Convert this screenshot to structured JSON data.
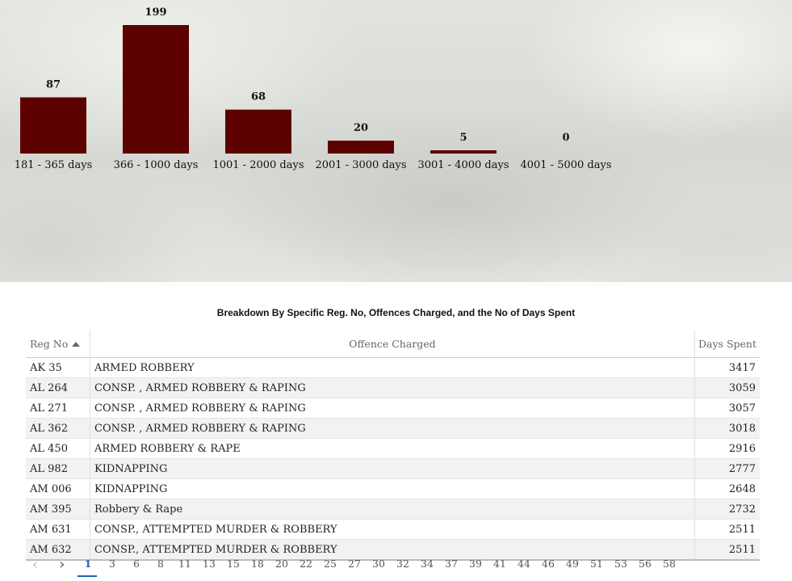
{
  "chart_data": {
    "type": "bar",
    "categories": [
      "181 - 365 days",
      "366 - 1000 days",
      "1001 - 2000 days",
      "2001 - 3000 days",
      "3001 - 4000 days",
      "4001 - 5000 days"
    ],
    "values": [
      87,
      199,
      68,
      20,
      5,
      0
    ],
    "title": "",
    "xlabel": "",
    "ylabel": "",
    "ylim": [
      0,
      199
    ],
    "data_labels": true,
    "grid": false,
    "bar_color": "#5c0000"
  },
  "table": {
    "title": "Breakdown By Specific Reg. No, Offences Charged, and the No of Days Spent",
    "columns": [
      "Reg No",
      "Offence Charged",
      "Days Spent"
    ],
    "sort": {
      "column": "Reg No",
      "direction": "ascending"
    },
    "rows": [
      {
        "reg": "AK 35",
        "offence": "ARMED ROBBERY",
        "days": "3417"
      },
      {
        "reg": "AL 264",
        "offence": "CONSP. , ARMED ROBBERY & RAPING",
        "days": "3059"
      },
      {
        "reg": "AL 271",
        "offence": "CONSP. , ARMED ROBBERY & RAPING",
        "days": "3057"
      },
      {
        "reg": "AL 362",
        "offence": "CONSP. , ARMED ROBBERY & RAPING",
        "days": "3018"
      },
      {
        "reg": "AL 450",
        "offence": "ARMED ROBBERY & RAPE",
        "days": "2916"
      },
      {
        "reg": "AL 982",
        "offence": "KIDNAPPING",
        "days": "2777"
      },
      {
        "reg": "AM 006",
        "offence": "KIDNAPPING",
        "days": "2648"
      },
      {
        "reg": "AM 395",
        "offence": "Robbery & Rape",
        "days": "2732"
      },
      {
        "reg": "AM 631",
        "offence": "CONSP., ATTEMPTED MURDER & ROBBERY",
        "days": "2511"
      },
      {
        "reg": "AM 632",
        "offence": "CONSP., ATTEMPTED MURDER & ROBBERY",
        "days": "2511"
      }
    ]
  },
  "pagination": {
    "prev_icon": "‹",
    "next_icon": "›",
    "pages": [
      "1",
      "3",
      "6",
      "8",
      "11",
      "13",
      "15",
      "18",
      "20",
      "22",
      "25",
      "27",
      "30",
      "32",
      "34",
      "37",
      "39",
      "41",
      "44",
      "46",
      "49",
      "51",
      "53",
      "56",
      "58"
    ],
    "current": "1",
    "accent": "#1e63b6"
  }
}
